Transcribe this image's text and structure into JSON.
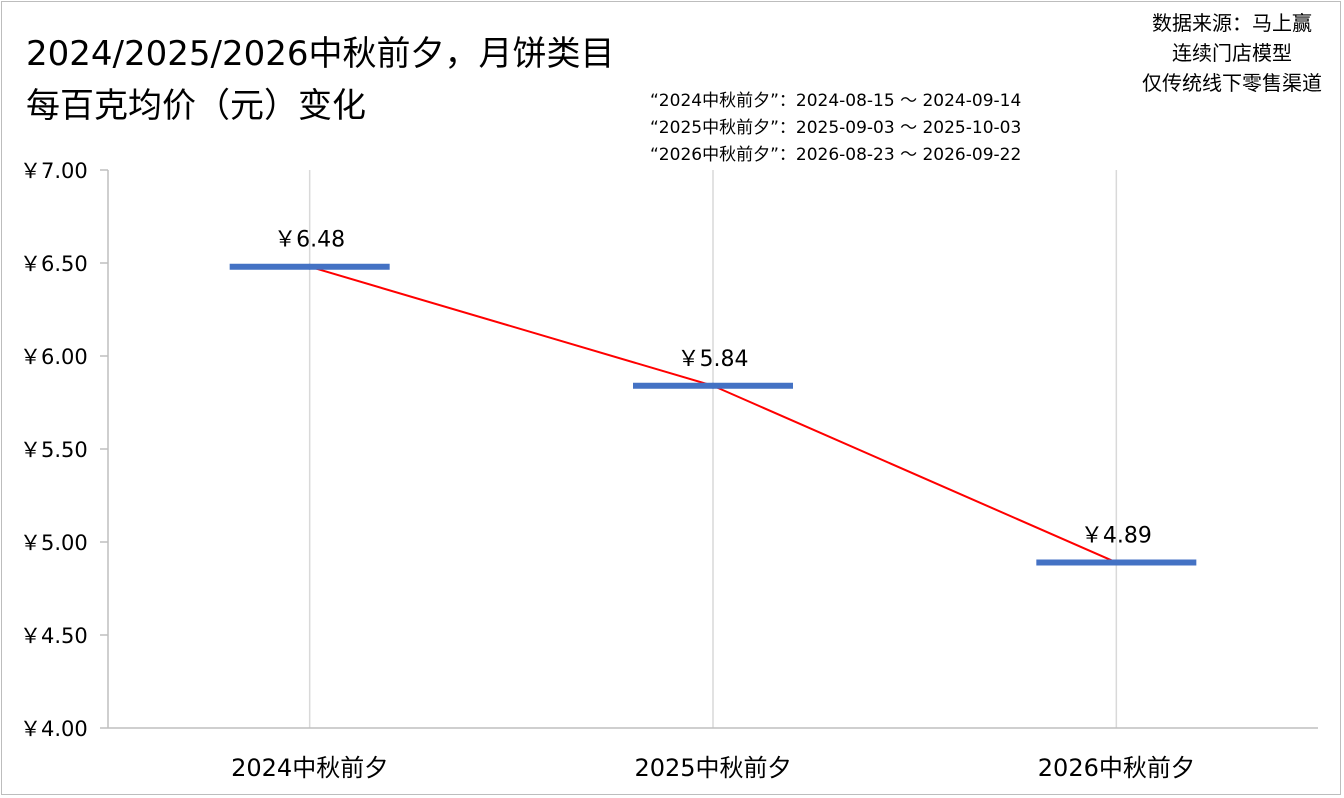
{
  "chart_data": {
    "type": "line",
    "title_lines": [
      "2024/2025/2026中秋前夕，月饼类目",
      "每百克均价（元）变化"
    ],
    "source_lines": [
      "数据来源：马上赢",
      "连续门店模型",
      "仅传统线下零售渠道"
    ],
    "period_notes": [
      "“2024中秋前夕”：2024-08-15 ～ 2024-09-14",
      "“2025中秋前夕”：2025-09-03 ～ 2025-10-03",
      "“2026中秋前夕”：2026-08-23 ～ 2026-09-22"
    ],
    "categories": [
      "2024中秋前夕",
      "2025中秋前夕",
      "2026中秋前夕"
    ],
    "values": [
      6.48,
      5.84,
      4.89
    ],
    "data_labels": [
      "￥6.48",
      "￥5.84",
      "￥4.89"
    ],
    "ylim": [
      4.0,
      7.0
    ],
    "y_ticks": [
      4.0,
      4.5,
      5.0,
      5.5,
      6.0,
      6.5,
      7.0
    ],
    "y_tick_labels": [
      "￥4.00",
      "￥4.50",
      "￥5.00",
      "￥5.50",
      "￥6.00",
      "￥6.50",
      "￥7.00"
    ],
    "xlabel": "",
    "ylabel": "",
    "grid": "vertical",
    "marker_color": "#4472C4",
    "line_color": "#FF0000",
    "axis_color": "#BFBFBF"
  }
}
